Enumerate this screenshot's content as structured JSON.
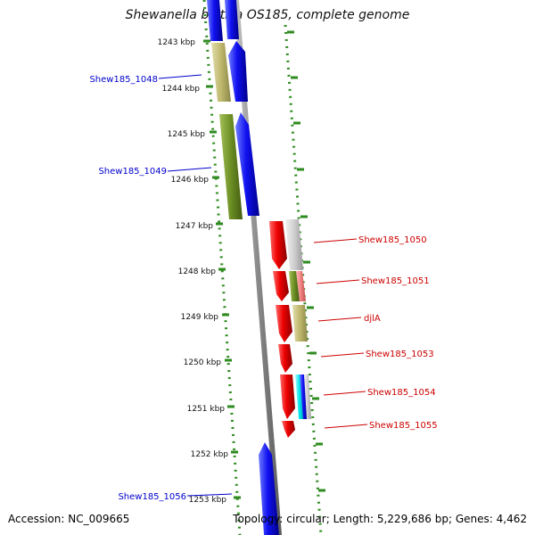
{
  "title": "Shewanella baltica OS185, complete genome",
  "footer": {
    "accession_label": "Accession:",
    "accession": "NC_009665",
    "topology_label": "Topology:",
    "topology": "circular;",
    "length_label": "Length:",
    "length": "5,229,686 bp;",
    "genes_label": "Genes:",
    "genes": "4,462"
  },
  "colors": {
    "backbone": "#999999",
    "ruler_ticks": "#2e8b1f",
    "forward_gene": "#0a0aee",
    "reverse_gene": "#e01010",
    "left_labels": "#0000cc",
    "right_labels": "#cc0000",
    "olive": "#6b8e23",
    "khaki": "#bdb76b",
    "lightgray": "#cccccc",
    "salmon": "#f08080",
    "cyan": "#00e5ee"
  },
  "ruler": {
    "labels": [
      "1243 kbp",
      "1244 kbp",
      "1245 kbp",
      "1246 kbp",
      "1247 kbp",
      "1248 kbp",
      "1249 kbp",
      "1250 kbp",
      "1251 kbp",
      "1252 kbp",
      "1253 kbp"
    ]
  },
  "gene_labels": {
    "left": [
      "Shew185_1048",
      "Shew185_1049",
      "Shew185_1056"
    ],
    "right": [
      "Shew185_1050",
      "Shew185_1051",
      "djlA",
      "Shew185_1053",
      "Shew185_1054",
      "Shew185_1055"
    ]
  }
}
